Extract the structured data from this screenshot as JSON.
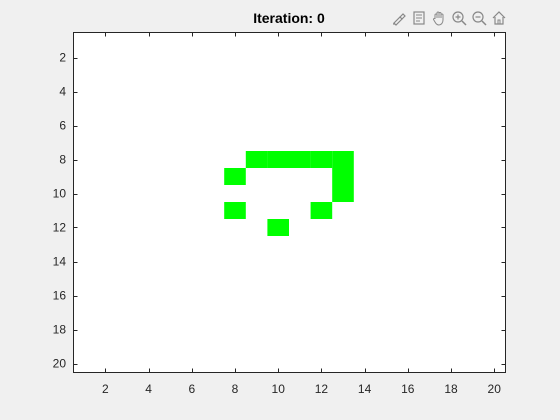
{
  "figure": {
    "title": "Iteration: 0"
  },
  "toolbar": {
    "icons": [
      "brush-icon",
      "datatip-icon",
      "pan-hand-icon",
      "zoom-in-icon",
      "zoom-out-icon",
      "home-icon"
    ]
  },
  "chart_data": {
    "type": "heatmap",
    "title": "Iteration: 0",
    "xlabel": "",
    "ylabel": "",
    "xlim": [
      0.5,
      20.5
    ],
    "ylim": [
      0.5,
      20.5
    ],
    "y_direction": "reverse",
    "x_ticks": [
      2,
      4,
      6,
      8,
      10,
      12,
      14,
      16,
      18,
      20
    ],
    "y_ticks": [
      2,
      4,
      6,
      8,
      10,
      12,
      14,
      16,
      18,
      20
    ],
    "live_color": "#00ff00",
    "dead_color": "#ffffff",
    "live_cells": [
      [
        9,
        8
      ],
      [
        10,
        8
      ],
      [
        11,
        8
      ],
      [
        12,
        8
      ],
      [
        13,
        8
      ],
      [
        8,
        9
      ],
      [
        13,
        9
      ],
      [
        13,
        10
      ],
      [
        8,
        11
      ],
      [
        12,
        11
      ],
      [
        10,
        12
      ]
    ]
  }
}
